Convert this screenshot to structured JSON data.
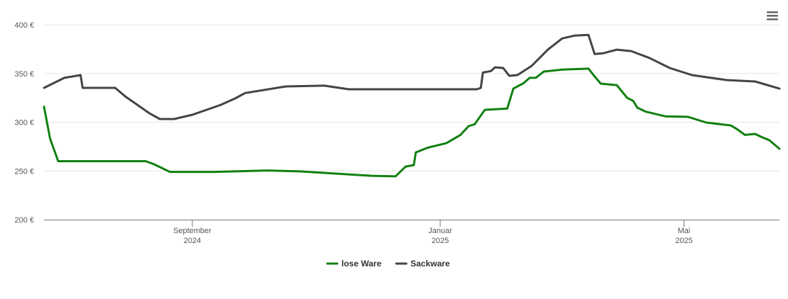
{
  "chart_data": {
    "type": "line",
    "series": [
      {
        "name": "lose Ware",
        "color": "#118011",
        "x": [
          "2024-06-20",
          "2024-06-23",
          "2024-06-27",
          "2024-08-09",
          "2024-08-13",
          "2024-08-21",
          "2024-09-12",
          "2024-10-08",
          "2024-10-24",
          "2024-11-28",
          "2024-12-10",
          "2024-12-15",
          "2024-12-19",
          "2024-12-20",
          "2024-12-26",
          "2025-01-04",
          "2025-01-11",
          "2025-01-15",
          "2025-01-18",
          "2025-01-23",
          "2025-02-03",
          "2025-02-06",
          "2025-02-11",
          "2025-02-14",
          "2025-02-17",
          "2025-02-21",
          "2025-03-02",
          "2025-03-15",
          "2025-03-18",
          "2025-03-21",
          "2025-03-29",
          "2025-04-03",
          "2025-04-06",
          "2025-04-08",
          "2025-04-12",
          "2025-04-22",
          "2025-05-03",
          "2025-05-12",
          "2025-05-24",
          "2025-05-27",
          "2025-05-31",
          "2025-06-05",
          "2025-06-08",
          "2025-06-12",
          "2025-06-17"
        ],
        "values": [
          316,
          283,
          260,
          260,
          257,
          249,
          249,
          250.5,
          249.5,
          245,
          244.4,
          254.5,
          256,
          269,
          274,
          278.5,
          287,
          296,
          298,
          312.7,
          314,
          334.5,
          340,
          345.5,
          345.5,
          352,
          354,
          355,
          347,
          339.6,
          338,
          325,
          322,
          315,
          311,
          306,
          305.5,
          299.6,
          296.7,
          293,
          287,
          288,
          285,
          281.5,
          272.7
        ]
      },
      {
        "name": "Sackware",
        "color": "#434348",
        "x": [
          "2024-06-20",
          "2024-06-30",
          "2024-07-08",
          "2024-07-09",
          "2024-07-25",
          "2024-07-30",
          "2024-08-11",
          "2024-08-16",
          "2024-08-23",
          "2024-09-01",
          "2024-09-15",
          "2024-09-22",
          "2024-09-27",
          "2024-10-17",
          "2024-11-05",
          "2024-11-17",
          "2025-01-19",
          "2025-01-21",
          "2025-01-22",
          "2025-01-26",
          "2025-01-28",
          "2025-02-01",
          "2025-02-04",
          "2025-02-08",
          "2025-02-15",
          "2025-02-23",
          "2025-03-02",
          "2025-03-08",
          "2025-03-15",
          "2025-03-18",
          "2025-03-22",
          "2025-03-29",
          "2025-04-05",
          "2025-04-14",
          "2025-04-24",
          "2025-05-05",
          "2025-05-22",
          "2025-06-05",
          "2025-06-17"
        ],
        "values": [
          335.3,
          345.5,
          348.4,
          335.3,
          335.3,
          326.5,
          309,
          303.3,
          303.3,
          307.6,
          317.8,
          324.4,
          330,
          336.7,
          337.5,
          333.8,
          333.8,
          335.3,
          351,
          352.5,
          356.4,
          355.6,
          347.6,
          348.4,
          357.8,
          374.5,
          386,
          388.9,
          389.6,
          370,
          370.7,
          374.5,
          373,
          366,
          355.6,
          348.4,
          343.3,
          341.8,
          334.5
        ]
      }
    ],
    "xlim": [
      "2024-06-20",
      "2025-06-17"
    ],
    "xticks": [
      {
        "value": "2024-09-01",
        "label": "September 2024"
      },
      {
        "value": "2025-01-01",
        "label": "Januar 2025"
      },
      {
        "value": "2025-05-01",
        "label": "Mai 2025"
      }
    ],
    "ylim": [
      200,
      400
    ],
    "yticks": [
      {
        "value": 200,
        "label": "200 €"
      },
      {
        "value": 250,
        "label": "250 €"
      },
      {
        "value": 300,
        "label": "300 €"
      },
      {
        "value": 350,
        "label": "350 €"
      },
      {
        "value": 400,
        "label": "400 €"
      }
    ],
    "grid": true,
    "legend": "bottom"
  }
}
